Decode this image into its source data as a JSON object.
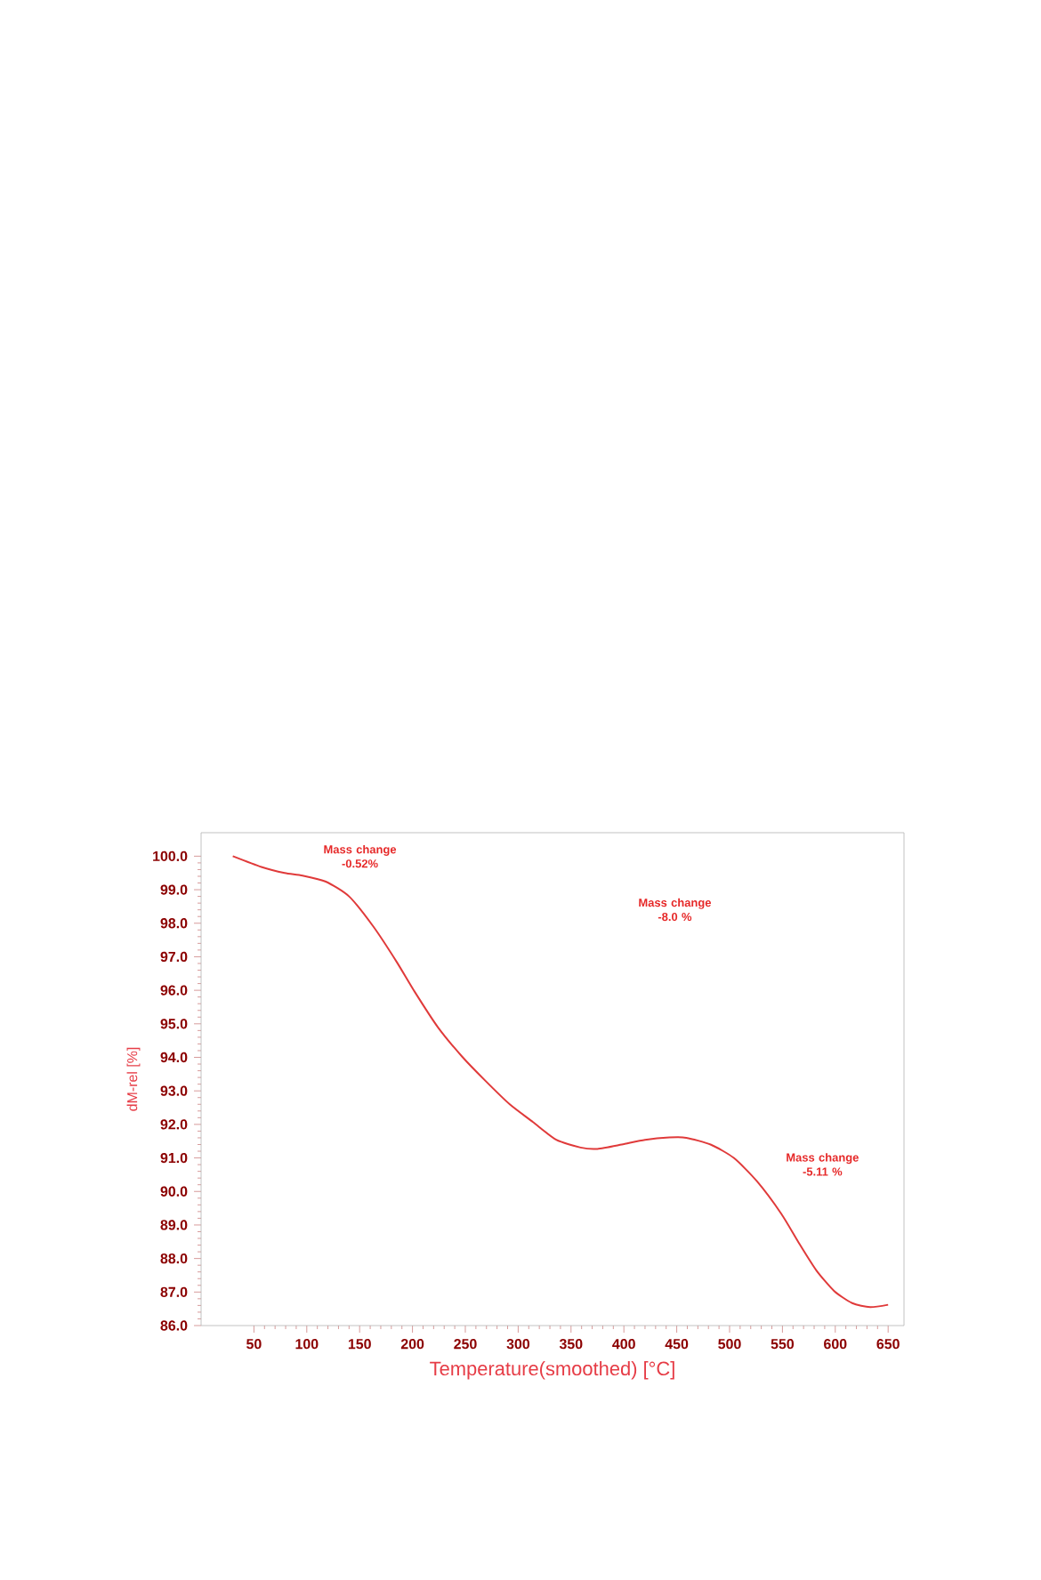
{
  "chart_data": {
    "type": "line",
    "xlabel": "Temperature(smoothed) [°C]",
    "ylabel": "dM-rel [%]",
    "x": [
      30,
      57,
      79,
      96,
      118,
      140,
      163,
      185,
      202,
      224,
      247,
      269,
      292,
      314,
      336,
      359,
      375,
      398,
      420,
      443,
      459,
      482,
      504,
      526,
      549,
      566,
      582,
      599,
      616,
      633,
      650
    ],
    "series": [
      {
        "color": "#e03a3a",
        "values": [
          100.0,
          99.68,
          99.5,
          99.42,
          99.24,
          98.8,
          97.9,
          96.85,
          95.96,
          94.9,
          94.02,
          93.3,
          92.6,
          92.07,
          91.54,
          91.31,
          91.27,
          91.4,
          91.54,
          91.61,
          91.6,
          91.4,
          91.0,
          90.3,
          89.33,
          88.44,
          87.65,
          87.03,
          86.67,
          86.55,
          86.62
        ]
      }
    ],
    "xlim": [
      0,
      665
    ],
    "ylim": [
      86,
      100.7
    ],
    "xticks": [
      50,
      100,
      150,
      200,
      250,
      300,
      350,
      400,
      450,
      500,
      550,
      600,
      650
    ],
    "yticks": [
      {
        "value": 86,
        "label": "86.0"
      },
      {
        "value": 87,
        "label": "87.0"
      },
      {
        "value": 88,
        "label": "88.0"
      },
      {
        "value": 89,
        "label": "89.0"
      },
      {
        "value": 90,
        "label": "90.0"
      },
      {
        "value": 91,
        "label": "91.0"
      },
      {
        "value": 92,
        "label": "92.0"
      },
      {
        "value": 93,
        "label": "93.0"
      },
      {
        "value": 94,
        "label": "94.0"
      },
      {
        "value": 95,
        "label": "95.0"
      },
      {
        "value": 96,
        "label": "96.0"
      },
      {
        "value": 97,
        "label": "97.0"
      },
      {
        "value": 98,
        "label": "98.0"
      },
      {
        "value": 99,
        "label": "99.0"
      },
      {
        "value": 100,
        "label": "100.0"
      }
    ],
    "annotations": [
      "Mass change -0.52%",
      "Mass change -8.0 %",
      "Mass change -5.11 %"
    ],
    "grid": false,
    "marker": "none",
    "line_style": "solid"
  }
}
